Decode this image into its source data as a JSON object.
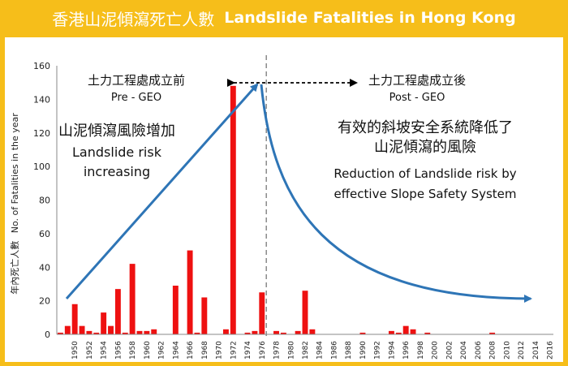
{
  "header": {
    "title_zh": "香港山泥傾瀉死亡人數",
    "title_en": "Landslide Fatalities in Hong Kong"
  },
  "colors": {
    "background": "#f6be1a",
    "bar": "#ee1111",
    "arrow": "#2e75b6",
    "divider": "#8a8a8a"
  },
  "annotations": {
    "pre_zh": "土力工程處成立前",
    "pre_en": "Pre - GEO",
    "post_zh": "土力工程處成立後",
    "post_en": "Post - GEO",
    "left_zh": "山泥傾瀉風險增加",
    "left_en_1": "Landslide risk",
    "left_en_2": "increasing",
    "right_zh_1": "有效的斜坡安全系統降低了",
    "right_zh_2": "山泥傾瀉的風險",
    "right_en_1": "Reduction of Landslide risk by",
    "right_en_2": "effective Slope Safety System"
  },
  "chart_data": {
    "type": "bar",
    "ylabel_zh": "年內死亡人數",
    "ylabel_en": "No. of Fatalities in the year",
    "ylim": [
      0,
      160
    ],
    "yticks": [
      0,
      20,
      40,
      60,
      80,
      100,
      120,
      140,
      160
    ],
    "xtick_labels": [
      "1950",
      "1952",
      "1954",
      "1956",
      "1958",
      "1960",
      "1962",
      "1964",
      "1966",
      "1968",
      "1970",
      "1972",
      "1974",
      "1976",
      "1978",
      "1980",
      "1982",
      "1984",
      "1986",
      "1988",
      "1990",
      "1992",
      "1994",
      "1996",
      "1998",
      "2000",
      "2002",
      "2004",
      "2006",
      "2008",
      "2010",
      "2012",
      "2014",
      "2016"
    ],
    "categories": [
      1948,
      1949,
      1950,
      1951,
      1952,
      1953,
      1954,
      1955,
      1956,
      1957,
      1958,
      1959,
      1960,
      1961,
      1962,
      1963,
      1964,
      1965,
      1966,
      1967,
      1968,
      1969,
      1970,
      1971,
      1972,
      1973,
      1974,
      1975,
      1976,
      1977,
      1978,
      1979,
      1980,
      1981,
      1982,
      1983,
      1984,
      1985,
      1986,
      1987,
      1988,
      1989,
      1990,
      1991,
      1992,
      1993,
      1994,
      1995,
      1996,
      1997,
      1998,
      1999,
      2000,
      2001,
      2002,
      2003,
      2004,
      2005,
      2006,
      2007,
      2008,
      2009,
      2010,
      2011,
      2012,
      2013,
      2014,
      2015,
      2016
    ],
    "values": [
      1,
      5,
      18,
      5,
      2,
      1,
      13,
      5,
      27,
      1,
      42,
      2,
      2,
      3,
      0,
      0,
      29,
      0,
      50,
      1,
      22,
      0,
      0,
      3,
      148,
      0,
      1,
      2,
      25,
      0,
      2,
      1,
      0,
      2,
      26,
      3,
      0,
      0,
      0,
      0,
      0,
      0,
      1,
      0,
      0,
      0,
      2,
      1,
      5,
      3,
      0,
      1,
      0,
      0,
      0,
      0,
      0,
      0,
      0,
      0,
      1,
      0,
      0,
      0,
      0,
      0,
      0,
      0,
      0
    ],
    "divider_year": 1977
  }
}
